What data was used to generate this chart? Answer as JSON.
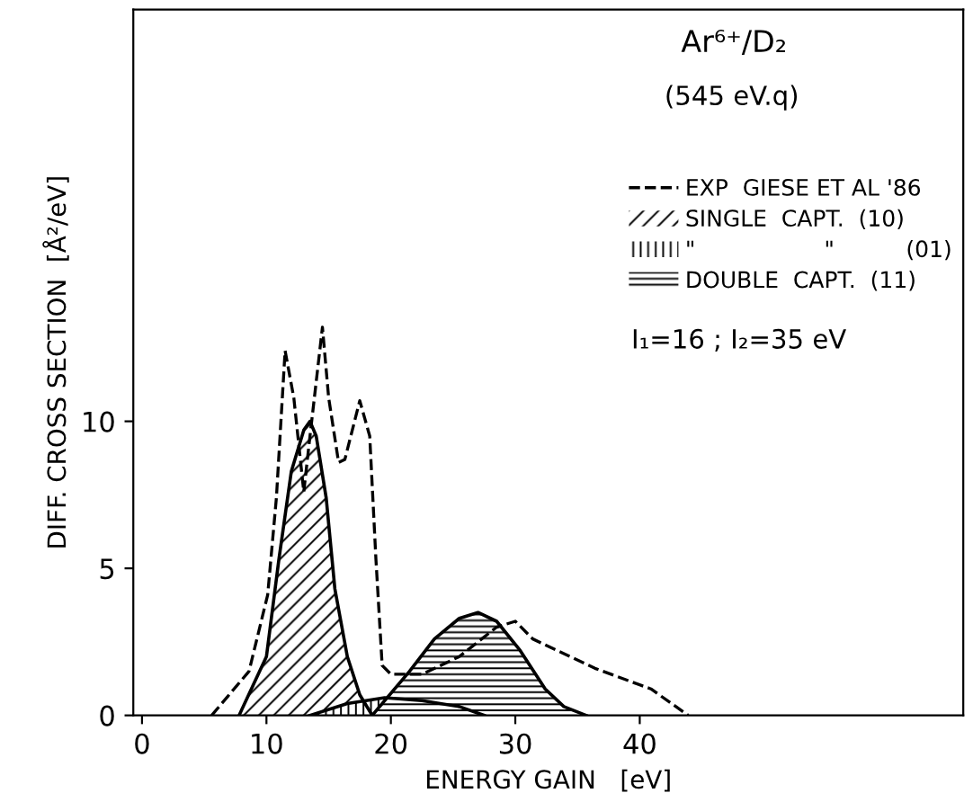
{
  "chart_data": {
    "type": "area",
    "title": "Ar⁶⁺/D₂",
    "subtitle": "(545 eV.q)",
    "xlabel": "ENERGY GAIN   [eV]",
    "ylabel": "DIFF. CROSS SECTION  [Å²/eV]",
    "annotations": [
      "I₁=16 ; I₂=35 eV"
    ],
    "series": [
      {
        "name": "EXP  GIESE ET AL '86",
        "type": "line",
        "line_style": "dashed",
        "color": "#000000",
        "x": [
          5.6,
          8.6,
          10.1,
          10.8,
          11.5,
          12.2,
          13.0,
          13.5,
          14.5,
          15.0,
          15.8,
          16.3,
          17.5,
          18.3,
          18.8,
          19.3,
          20.0,
          22.5,
          25.5,
          28.5,
          30.0,
          31.4,
          36.4,
          40.9,
          43.9
        ],
        "values": [
          0,
          1.5,
          4.1,
          7.4,
          12.4,
          10.8,
          7.6,
          9.5,
          13.2,
          10.8,
          8.6,
          8.7,
          10.7,
          9.5,
          5.3,
          1.7,
          1.4,
          1.4,
          2.0,
          3.0,
          3.2,
          2.6,
          1.6,
          0.9,
          0
        ]
      },
      {
        "name": "SINGLE  CAPT.  (10)",
        "color": "#000000",
        "x": [
          7.8,
          10.0,
          11.0,
          12.0,
          13.0,
          13.5,
          14.0,
          14.8,
          15.5,
          16.5,
          17.5,
          18.5
        ],
        "values": [
          0,
          2.0,
          5.3,
          8.3,
          9.7,
          10,
          9.5,
          7.4,
          4.3,
          2.0,
          0.7,
          0
        ]
      },
      {
        "name": "\"                  \"          (01)",
        "color": "#000000",
        "x": [
          13.5,
          16.5,
          19.5,
          22.5,
          25.5,
          27.5
        ],
        "values": [
          0,
          0.4,
          0.6,
          0.5,
          0.3,
          0
        ]
      },
      {
        "name": "DOUBLE  CAPT.  (11)",
        "color": "#000000",
        "x": [
          18.5,
          21.5,
          23.5,
          25.5,
          27.0,
          28.5,
          30.4,
          32.4,
          33.9,
          35.7
        ],
        "values": [
          0,
          1.5,
          2.6,
          3.3,
          3.5,
          3.2,
          2.2,
          0.9,
          0.3,
          0
        ]
      }
    ],
    "xlim": [
      -0.7,
      66
    ],
    "ylim": [
      0,
      24
    ],
    "xticks": [
      0,
      10,
      20,
      30,
      40
    ],
    "yticks": [
      0,
      5,
      10
    ],
    "grid": false,
    "legend": "right",
    "marker": "none"
  }
}
